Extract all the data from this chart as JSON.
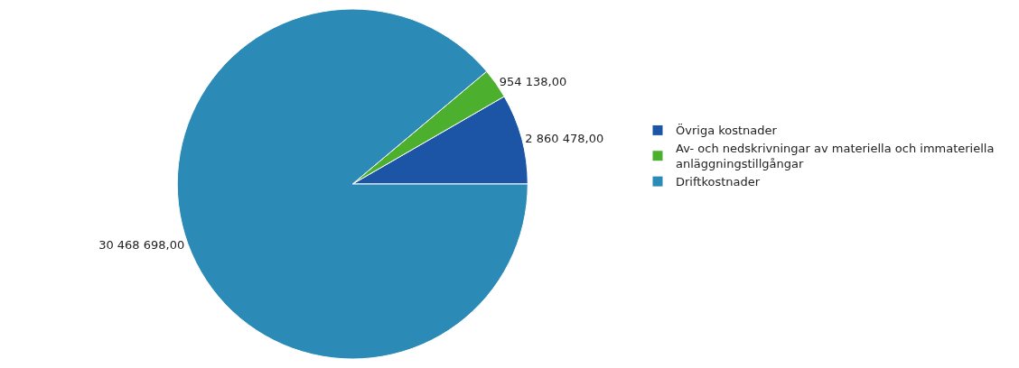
{
  "chart_data": {
    "type": "pie",
    "categories": [
      "Övriga kostnader",
      "Av- och nedskrivningar av materiella och immateriella anläggningstillgångar",
      "Driftkostnader"
    ],
    "values": [
      2860478.0,
      954138.0,
      30468698.0
    ],
    "colors": [
      "#1c55a6",
      "#4caf2e",
      "#2b8ab6"
    ],
    "value_labels": [
      "2 860 478,00",
      "954 138,00",
      "30 468 698,00"
    ],
    "legend": "right"
  }
}
